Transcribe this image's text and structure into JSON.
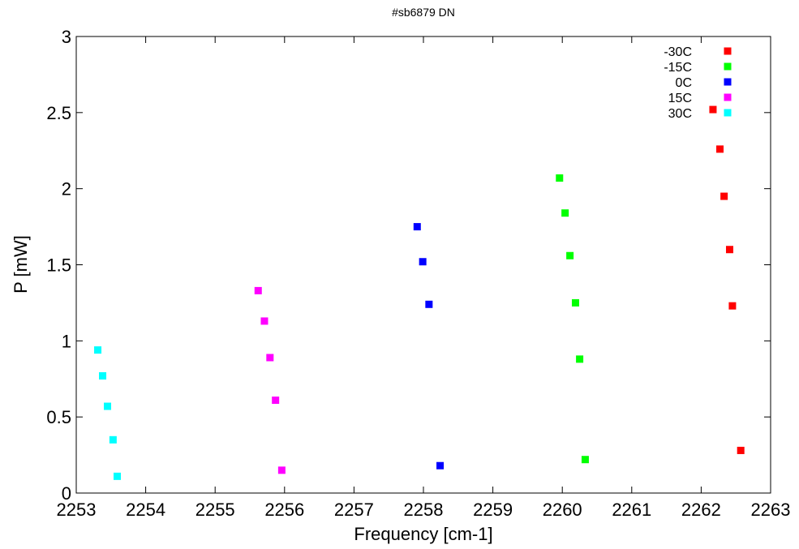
{
  "chart_data": {
    "type": "scatter",
    "title": "#sb6879 DN",
    "xlabel": "Frequency [cm-1]",
    "ylabel": "P [mW]",
    "xlim": [
      2253,
      2263
    ],
    "ylim": [
      0,
      3
    ],
    "x_ticks": [
      2253,
      2254,
      2255,
      2256,
      2257,
      2258,
      2259,
      2260,
      2261,
      2262,
      2263
    ],
    "y_ticks": [
      0,
      0.5,
      1,
      1.5,
      2,
      2.5,
      3
    ],
    "y_tick_labels": [
      "0",
      "0.5",
      "1",
      "1.5",
      "2",
      "2.5",
      "3"
    ],
    "grid": false,
    "legend_position": "top-right",
    "series": [
      {
        "name": "-30C",
        "color": "#ff0000",
        "points": [
          [
            2262.17,
            2.52
          ],
          [
            2262.27,
            2.26
          ],
          [
            2262.33,
            1.95
          ],
          [
            2262.41,
            1.6
          ],
          [
            2262.45,
            1.23
          ],
          [
            2262.57,
            0.28
          ]
        ]
      },
      {
        "name": "-15C",
        "color": "#00ff00",
        "points": [
          [
            2259.96,
            2.07
          ],
          [
            2260.04,
            1.84
          ],
          [
            2260.11,
            1.56
          ],
          [
            2260.19,
            1.25
          ],
          [
            2260.25,
            0.88
          ],
          [
            2260.33,
            0.22
          ]
        ]
      },
      {
        "name": "0C",
        "color": "#0000ff",
        "points": [
          [
            2257.91,
            1.75
          ],
          [
            2257.99,
            1.52
          ],
          [
            2258.08,
            1.24
          ],
          [
            2258.24,
            0.18
          ]
        ]
      },
      {
        "name": "15C",
        "color": "#ff00ff",
        "points": [
          [
            2255.62,
            1.33
          ],
          [
            2255.71,
            1.13
          ],
          [
            2255.79,
            0.89
          ],
          [
            2255.87,
            0.61
          ],
          [
            2255.96,
            0.15
          ]
        ]
      },
      {
        "name": "30C",
        "color": "#00ffff",
        "points": [
          [
            2253.31,
            0.94
          ],
          [
            2253.38,
            0.77
          ],
          [
            2253.45,
            0.57
          ],
          [
            2253.53,
            0.35
          ],
          [
            2253.59,
            0.11
          ]
        ]
      }
    ]
  }
}
